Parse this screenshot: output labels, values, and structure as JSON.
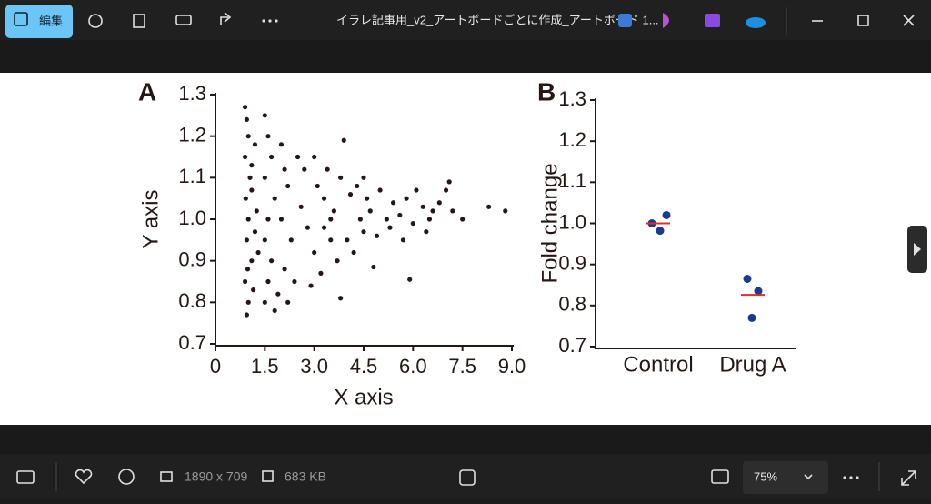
{
  "app": {
    "toolbar": {
      "edit": "編集",
      "filename": "イラレ記事用_v2_アートボードごとに作成_アートボード 1..."
    },
    "statusbar": {
      "dimensions": "1890 x 709",
      "size": "683 KB",
      "zoom": "75%"
    }
  },
  "chart_data": [
    {
      "type": "scatter",
      "panel": "A",
      "x_label": "X axis",
      "y_label": "Y axis",
      "color": "#231815",
      "x": [
        0.9,
        0.95,
        1.0,
        0.9,
        1.05,
        0.92,
        1.0,
        0.95,
        1.1,
        0.9,
        1.0,
        0.95,
        1.15,
        1.2,
        1.1,
        1.25,
        1.2,
        0.98,
        1.3,
        1.1,
        1.5,
        1.6,
        1.7,
        1.5,
        1.8,
        1.6,
        1.5,
        1.7,
        1.6,
        1.5,
        1.9,
        2.0,
        2.1,
        2.2,
        2.0,
        2.3,
        2.1,
        2.4,
        2.5,
        2.2,
        1.8,
        2.6,
        2.7,
        2.8,
        3.0,
        3.1,
        3.0,
        3.2,
        3.3,
        3.4,
        3.5,
        3.6,
        3.7,
        3.8,
        3.9,
        3.8,
        3.5,
        2.9,
        3.3,
        4.0,
        4.1,
        4.3,
        4.4,
        4.5,
        4.6,
        4.8,
        4.7,
        4.9,
        5.0,
        5.2,
        5.3,
        5.4,
        5.6,
        5.7,
        5.9,
        5.8,
        6.0,
        4.2,
        4.5,
        6.1,
        6.3,
        6.4,
        6.6,
        6.8,
        7.0,
        7.1,
        7.2,
        7.5,
        8.3,
        8.8,
        6.5
      ],
      "y": [
        1.27,
        1.24,
        1.2,
        1.15,
        1.1,
        1.05,
        1.0,
        0.95,
        0.9,
        0.85,
        0.8,
        0.77,
        0.83,
        1.18,
        1.13,
        1.02,
        0.97,
        0.88,
        0.92,
        1.07,
        1.25,
        1.2,
        1.15,
        1.1,
        1.05,
        1.0,
        0.95,
        0.9,
        0.85,
        0.8,
        0.82,
        1.18,
        1.12,
        1.08,
        1.0,
        0.95,
        0.88,
        0.85,
        1.15,
        0.8,
        0.78,
        1.03,
        1.12,
        0.98,
        1.15,
        1.08,
        0.92,
        0.87,
        1.05,
        1.12,
        0.95,
        1.02,
        0.9,
        1.1,
        1.19,
        0.81,
        1.0,
        0.84,
        0.98,
        0.95,
        1.06,
        1.08,
        1.0,
        0.97,
        1.05,
        0.885,
        1.02,
        0.96,
        1.07,
        1.0,
        0.98,
        1.04,
        1.01,
        0.95,
        0.855,
        1.05,
        0.99,
        0.92,
        1.1,
        1.07,
        1.03,
        0.97,
        1.02,
        1.04,
        1.07,
        1.09,
        1.02,
        1.0,
        1.03,
        1.02,
        1.0
      ],
      "xlim": [
        0,
        9
      ],
      "ylim": [
        0.7,
        1.3
      ],
      "xticks": [
        0,
        1.5,
        {
          "value": 3,
          "label": "3.0"
        },
        4.5,
        {
          "value": 6,
          "label": "6.0"
        },
        7.5,
        {
          "value": 9,
          "label": "9.0"
        }
      ],
      "yticks": [
        0.7,
        0.8,
        0.9,
        {
          "value": 1,
          "label": "1.0"
        },
        1.1,
        1.2,
        1.3
      ]
    },
    {
      "type": "strip",
      "panel": "B",
      "y_label": "Fold change",
      "categories": [
        "Control",
        "Drug A"
      ],
      "values": [
        [
          1.0,
          0.982,
          1.02
        ],
        [
          0.865,
          0.835,
          0.77
        ]
      ],
      "means": [
        1.0,
        0.826
      ],
      "color": "#1a3a8f",
      "mean_color": "#e0302a",
      "ylim": [
        0.7,
        1.3
      ],
      "yticks": [
        0.7,
        0.8,
        0.9,
        {
          "value": 1,
          "label": "1.0"
        },
        1.1,
        1.2,
        1.3
      ]
    }
  ]
}
